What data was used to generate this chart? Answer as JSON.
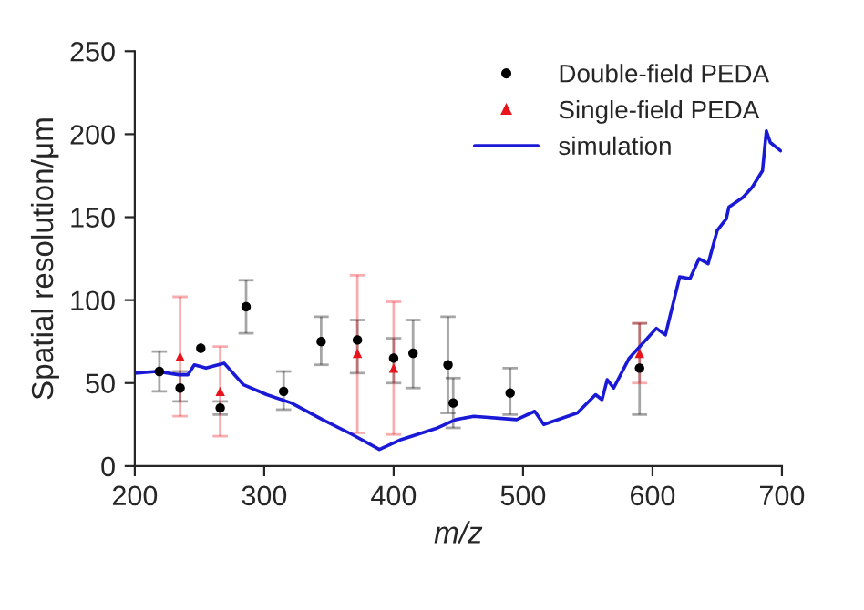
{
  "chart_data": {
    "type": "scatter",
    "xlabel": "m/z",
    "ylabel": "Spatial resolution/μm",
    "xlim": [
      200,
      700
    ],
    "xticks": [
      200,
      300,
      400,
      500,
      600,
      700
    ],
    "ylim": [
      0,
      250
    ],
    "yticks": [
      0,
      50,
      100,
      150,
      200,
      250
    ],
    "grid": false,
    "legend": "top right",
    "series": [
      {
        "name": "Double-field PEDA",
        "marker": "circle",
        "color": "#000000",
        "x": [
          219,
          235,
          251,
          266,
          286,
          315,
          344,
          372,
          400,
          415,
          442,
          446,
          490,
          590
        ],
        "values": [
          57,
          47,
          71,
          35,
          96,
          45,
          75,
          76,
          65,
          68,
          61,
          38,
          44,
          59
        ],
        "errors": [
          [
            45,
            69
          ],
          [
            39,
            57
          ],
          null,
          [
            31,
            39
          ],
          [
            80,
            112
          ],
          [
            34,
            57
          ],
          [
            61,
            90
          ],
          [
            56,
            88
          ],
          [
            50,
            77
          ],
          [
            47,
            88
          ],
          [
            32,
            90
          ],
          [
            23,
            53
          ],
          [
            31,
            59
          ],
          [
            31,
            86
          ]
        ]
      },
      {
        "name": "Single-field PEDA",
        "marker": "triangle",
        "color": "#e8141b",
        "x": [
          235,
          266,
          372,
          400,
          590
        ],
        "values": [
          66,
          45,
          68,
          59,
          68
        ],
        "errors": [
          [
            30,
            102
          ],
          [
            18,
            72
          ],
          [
            20,
            115
          ],
          [
            19,
            99
          ],
          [
            50,
            86
          ]
        ]
      },
      {
        "name": "simulation",
        "type": "line",
        "marker": "none",
        "line_style": "solid",
        "color": "#1a1ad6",
        "x": [
          200,
          217,
          234,
          241,
          246,
          255,
          269,
          284,
          302,
          321,
          345,
          368,
          389,
          406,
          434,
          448,
          462,
          495,
          509,
          516,
          542,
          556,
          561,
          565,
          570,
          582,
          603,
          610,
          621,
          629,
          636,
          643,
          650,
          657,
          659,
          670,
          677,
          685,
          688,
          691,
          699
        ],
        "values": [
          56,
          57,
          55,
          55,
          61,
          59,
          62,
          49,
          43,
          38,
          28,
          19,
          10,
          16,
          23,
          28,
          30,
          28,
          33,
          25,
          32,
          43,
          40,
          52,
          47,
          65,
          83,
          79,
          114,
          113,
          125,
          122,
          142,
          149,
          156,
          162,
          168,
          178,
          202,
          195,
          190
        ]
      }
    ]
  }
}
